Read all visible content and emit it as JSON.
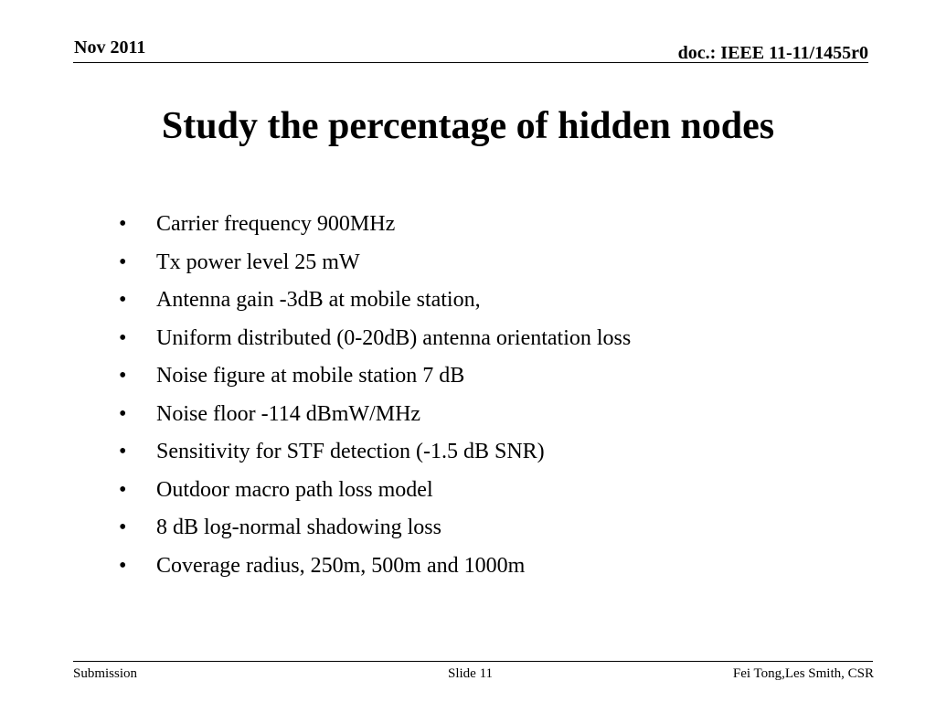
{
  "header": {
    "date": "Nov 2011",
    "doc_id": "doc.: IEEE 11-11/1455r0"
  },
  "slide": {
    "title": "Study the percentage of hidden nodes",
    "bullet_symbol": "•",
    "bullets": [
      "Carrier frequency 900MHz",
      "Tx power level 25 mW",
      "Antenna gain -3dB at mobile station,",
      "Uniform distributed (0-20dB) antenna orientation loss",
      "Noise figure at mobile station 7 dB",
      "Noise floor -114 dBmW/MHz",
      "Sensitivity for STF detection (-1.5 dB SNR)",
      "Outdoor macro path loss model",
      "8 dB log-normal shadowing loss",
      "Coverage radius, 250m, 500m and 1000m"
    ]
  },
  "footer": {
    "left": "Submission",
    "center": "Slide 11",
    "right": "Fei Tong,Les Smith, CSR"
  }
}
